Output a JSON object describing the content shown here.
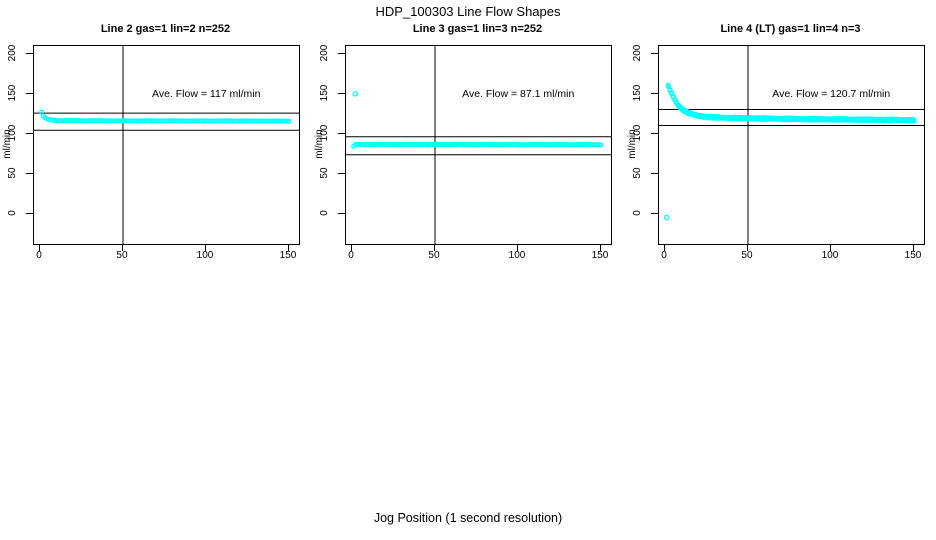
{
  "figure": {
    "title": "HDP_100303  Line Flow Shapes",
    "bottom_axis_label": "Jog Position (1 second resolution)"
  },
  "chart_data": {
    "type": "scatter",
    "marker": "open-circle",
    "marker_color": "#00FFFF",
    "line_color": "#000000",
    "xlabel": "Jog Position (1 second resolution)",
    "ylabel": "ml/min",
    "xlim": [
      0,
      150
    ],
    "ylim": [
      0,
      200
    ],
    "xticks": [
      0,
      50,
      100,
      150
    ],
    "yticks": [
      0,
      50,
      100,
      150,
      200
    ],
    "grid": false,
    "vline_x": 50,
    "panels": [
      {
        "title": "Line 2 gas=1 lin=2 n=252",
        "annotation": "Ave. Flow =  117  ml/min",
        "ave_flow_ml_min": 117,
        "n": 252,
        "hlines": [
          126.5,
          105.0
        ],
        "series": [
          {
            "name": "line2-flow",
            "offset": 0,
            "jitter": 0.25,
            "x_start": 1,
            "x_end": 150,
            "x_step": 1,
            "keypoints": [
              [
                1,
                127.5
              ],
              [
                2,
                122.5
              ],
              [
                3,
                120.5
              ],
              [
                4,
                119.3
              ],
              [
                5,
                118.6
              ],
              [
                6,
                118.1
              ],
              [
                8,
                117.5
              ],
              [
                10,
                117.2
              ],
              [
                14,
                117.0
              ],
              [
                30,
                116.9
              ],
              [
                60,
                116.8
              ],
              [
                100,
                116.7
              ],
              [
                150,
                116.5
              ]
            ]
          }
        ],
        "outliers": []
      },
      {
        "title": "Line 3 gas=1 lin=3 n=252",
        "annotation": "Ave. Flow =  87.1  ml/min",
        "ave_flow_ml_min": 87.1,
        "n": 252,
        "hlines": [
          97.0,
          74.5
        ],
        "series": [
          {
            "name": "line3-flow",
            "offset": 0,
            "jitter": 0.3,
            "x_start": 1,
            "x_end": 150,
            "x_step": 1,
            "keypoints": [
              [
                1,
                84.8
              ],
              [
                2,
                86.8
              ],
              [
                3,
                87.1
              ],
              [
                6,
                87.2
              ],
              [
                20,
                87.2
              ],
              [
                60,
                87.1
              ],
              [
                100,
                87.1
              ],
              [
                150,
                87.0
              ]
            ]
          }
        ],
        "outliers": [
          [
            2,
            150.5
          ]
        ]
      },
      {
        "title": "Line 4 (LT) gas=1 lin=4 n=3",
        "annotation": "Ave. Flow =  120.7  ml/min",
        "ave_flow_ml_min": 120.7,
        "n": 3,
        "hlines": [
          131.0,
          111.0
        ],
        "series": [
          {
            "name": "line4-run1",
            "offset": -0.8,
            "jitter": 0.5,
            "x_start": 2,
            "x_end": 150,
            "x_step": 1,
            "keypoints": [
              [
                2,
                160.5
              ],
              [
                3,
                155.5
              ],
              [
                4,
                151.0
              ],
              [
                5,
                147.0
              ],
              [
                6,
                143.0
              ],
              [
                7,
                139.5
              ],
              [
                8,
                136.5
              ],
              [
                9,
                134.0
              ],
              [
                10,
                132.0
              ],
              [
                12,
                129.0
              ],
              [
                14,
                126.8
              ],
              [
                16,
                125.2
              ],
              [
                18,
                124.0
              ],
              [
                20,
                123.2
              ],
              [
                25,
                121.8
              ],
              [
                30,
                121.0
              ],
              [
                40,
                120.4
              ],
              [
                50,
                120.0
              ],
              [
                70,
                119.3
              ],
              [
                100,
                118.6
              ],
              [
                130,
                118.0
              ],
              [
                150,
                117.6
              ]
            ]
          },
          {
            "name": "line4-run2",
            "offset": 0,
            "jitter": 0.45,
            "x_start": 2,
            "x_end": 150,
            "x_step": 1,
            "keypoints": [
              [
                2,
                160.5
              ],
              [
                3,
                155.5
              ],
              [
                4,
                151.0
              ],
              [
                5,
                147.0
              ],
              [
                6,
                143.0
              ],
              [
                7,
                139.5
              ],
              [
                8,
                136.5
              ],
              [
                9,
                134.0
              ],
              [
                10,
                132.0
              ],
              [
                12,
                129.0
              ],
              [
                14,
                126.8
              ],
              [
                16,
                125.2
              ],
              [
                18,
                124.0
              ],
              [
                20,
                123.2
              ],
              [
                25,
                121.8
              ],
              [
                30,
                121.0
              ],
              [
                40,
                120.4
              ],
              [
                50,
                120.0
              ],
              [
                70,
                119.3
              ],
              [
                100,
                118.6
              ],
              [
                130,
                118.0
              ],
              [
                150,
                117.6
              ]
            ]
          },
          {
            "name": "line4-run3",
            "offset": 0.8,
            "jitter": 0.55,
            "x_start": 2,
            "x_end": 150,
            "x_step": 1,
            "keypoints": [
              [
                2,
                160.5
              ],
              [
                3,
                155.5
              ],
              [
                4,
                151.0
              ],
              [
                5,
                147.0
              ],
              [
                6,
                143.0
              ],
              [
                7,
                139.5
              ],
              [
                8,
                136.5
              ],
              [
                9,
                134.0
              ],
              [
                10,
                132.0
              ],
              [
                12,
                129.0
              ],
              [
                14,
                126.8
              ],
              [
                16,
                125.2
              ],
              [
                18,
                124.0
              ],
              [
                20,
                123.2
              ],
              [
                25,
                121.8
              ],
              [
                30,
                121.0
              ],
              [
                40,
                120.4
              ],
              [
                50,
                120.0
              ],
              [
                70,
                119.3
              ],
              [
                100,
                118.6
              ],
              [
                130,
                118.0
              ],
              [
                150,
                117.6
              ]
            ]
          }
        ],
        "outliers": [
          [
            1,
            -4
          ]
        ]
      }
    ]
  }
}
